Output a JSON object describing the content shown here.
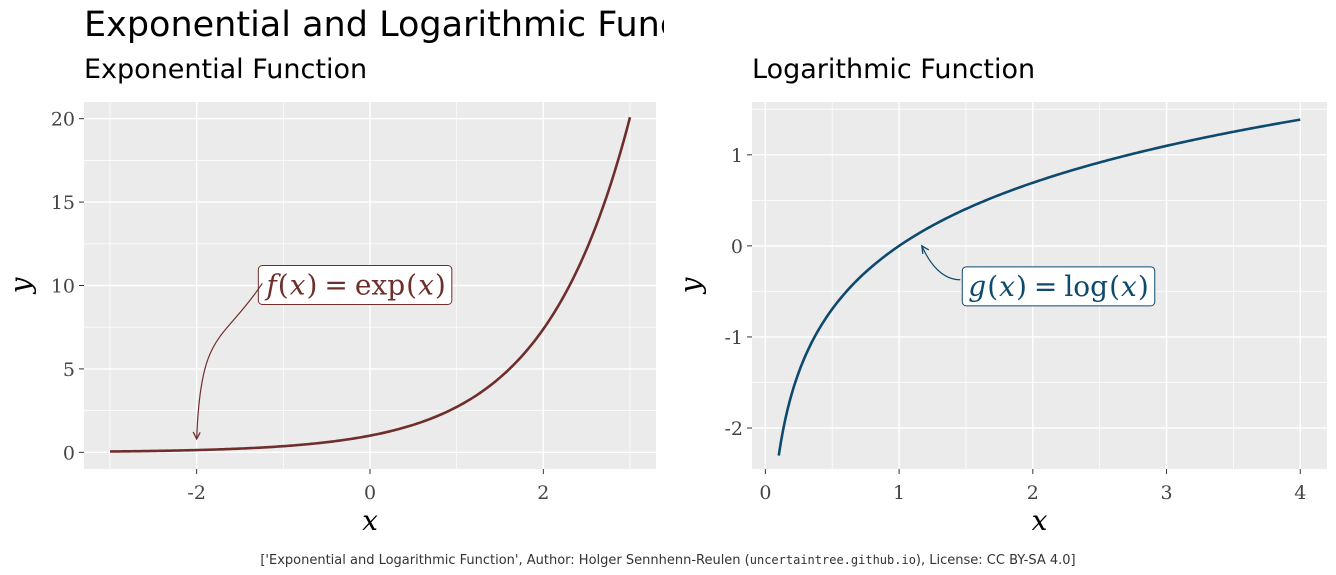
{
  "main_title": "Exponential and Logarithmic Functic",
  "caption": {
    "prefix": "['Exponential and Logarithmic Function', Author: Holger Sennhenn-Reulen (",
    "site": "uncertaintree.github.io",
    "suffix": "), License: CC BY-SA 4.0]"
  },
  "chart_data": [
    {
      "type": "line",
      "title": "Exponential Function",
      "xlabel": "x",
      "ylabel": "y",
      "xlim": [
        -3.3,
        3.3
      ],
      "ylim": [
        -1.0,
        21.0
      ],
      "x_ticks": [
        -2,
        0,
        2
      ],
      "x_tick_labels": [
        "-2",
        "0",
        "2"
      ],
      "y_ticks": [
        0,
        5,
        10,
        15,
        20
      ],
      "y_tick_labels": [
        "0",
        "5",
        "10",
        "15",
        "20"
      ],
      "grid": true,
      "series": [
        {
          "function": "exp(x)",
          "x_range": [
            -3,
            3
          ],
          "color": "#6e2f2c",
          "x": [
            -3,
            -2.5,
            -2,
            -1.5,
            -1,
            -0.5,
            0,
            0.5,
            1,
            1.5,
            2,
            2.5,
            3
          ],
          "y": [
            0.05,
            0.08,
            0.14,
            0.22,
            0.37,
            0.61,
            1.0,
            1.65,
            2.72,
            4.48,
            7.39,
            12.18,
            20.09
          ]
        }
      ],
      "annotation": {
        "label_parts": [
          "f",
          "(",
          "x",
          ")",
          "=",
          "exp",
          "(",
          "x",
          ")"
        ],
        "label_x": -1.3,
        "label_y": 10,
        "arrow_to_x": -2,
        "arrow_to_y": 0.8,
        "color": "#6e2f2c"
      }
    },
    {
      "type": "line",
      "title": "Logarithmic Function",
      "xlabel": "x",
      "ylabel": "y",
      "xlim": [
        -0.1,
        4.2
      ],
      "ylim": [
        -2.45,
        1.58
      ],
      "x_ticks": [
        0,
        1,
        2,
        3,
        4
      ],
      "x_tick_labels": [
        "0",
        "1",
        "2",
        "3",
        "4"
      ],
      "y_ticks": [
        -2,
        -1,
        0,
        1
      ],
      "y_tick_labels": [
        "-2",
        "-1",
        "0",
        "1"
      ],
      "grid": true,
      "series": [
        {
          "function": "log(x)",
          "x_range": [
            0.1,
            4
          ],
          "color": "#0e4a6e",
          "x": [
            0.1,
            0.2,
            0.3,
            0.5,
            0.75,
            1,
            1.5,
            2,
            2.5,
            3,
            3.5,
            4
          ],
          "y": [
            -2.3,
            -1.61,
            -1.2,
            -0.69,
            -0.29,
            0,
            0.41,
            0.69,
            0.92,
            1.1,
            1.25,
            1.39
          ]
        }
      ],
      "annotation": {
        "label_parts": [
          "g",
          "(",
          "x",
          ")",
          "=",
          "log",
          "(",
          "x",
          ")"
        ],
        "label_x": 1.45,
        "label_y": -0.45,
        "arrow_to_x": 1.17,
        "arrow_to_y": 0.0,
        "color": "#0e4a6e"
      }
    }
  ]
}
